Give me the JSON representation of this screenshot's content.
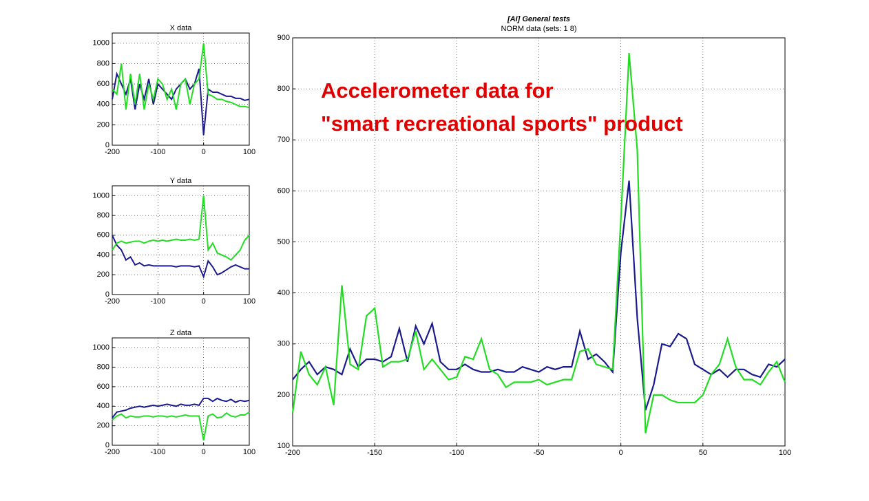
{
  "chart_data": [
    {
      "type": "line",
      "title": "X data",
      "x": [
        -200,
        -190,
        -180,
        -170,
        -160,
        -150,
        -140,
        -130,
        -120,
        -110,
        -100,
        -90,
        -80,
        -70,
        -60,
        -50,
        -40,
        -30,
        -20,
        -10,
        0,
        10,
        20,
        30,
        40,
        50,
        60,
        70,
        80,
        90,
        100
      ],
      "xlim": [
        -200,
        100
      ],
      "xticks": [
        -200,
        -100,
        0,
        100
      ],
      "ylim": [
        0,
        1100
      ],
      "yticks": [
        0,
        200,
        400,
        600,
        800,
        1000
      ],
      "grid": true,
      "series": [
        {
          "color": "#1a1a8c",
          "values": [
            450,
            700,
            600,
            500,
            650,
            350,
            600,
            450,
            650,
            400,
            600,
            550,
            500,
            450,
            550,
            600,
            650,
            550,
            600,
            750,
            100,
            550,
            520,
            520,
            500,
            480,
            480,
            460,
            460,
            440,
            450
          ]
        },
        {
          "color": "#22dd22",
          "values": [
            550,
            500,
            800,
            350,
            700,
            400,
            700,
            350,
            600,
            450,
            650,
            600,
            450,
            550,
            350,
            600,
            650,
            400,
            600,
            650,
            1000,
            500,
            480,
            450,
            450,
            430,
            420,
            400,
            380,
            380,
            370
          ]
        }
      ]
    },
    {
      "type": "line",
      "title": "Y data",
      "x": [
        -200,
        -190,
        -180,
        -170,
        -160,
        -150,
        -140,
        -130,
        -120,
        -110,
        -100,
        -90,
        -80,
        -70,
        -60,
        -50,
        -40,
        -30,
        -20,
        -10,
        0,
        10,
        20,
        30,
        40,
        50,
        60,
        70,
        80,
        90,
        100
      ],
      "xlim": [
        -200,
        100
      ],
      "xticks": [
        -200,
        -100,
        0,
        100
      ],
      "ylim": [
        0,
        1100
      ],
      "yticks": [
        0,
        200,
        400,
        600,
        800,
        1000
      ],
      "grid": true,
      "series": [
        {
          "color": "#1a1a8c",
          "values": [
            600,
            500,
            450,
            350,
            380,
            300,
            320,
            290,
            300,
            290,
            290,
            290,
            290,
            290,
            280,
            290,
            290,
            290,
            280,
            290,
            180,
            340,
            280,
            200,
            220,
            250,
            280,
            300,
            280,
            260,
            260
          ]
        },
        {
          "color": "#22dd22",
          "values": [
            450,
            520,
            540,
            520,
            530,
            540,
            540,
            520,
            540,
            550,
            540,
            550,
            540,
            550,
            560,
            550,
            550,
            560,
            550,
            560,
            1000,
            450,
            520,
            420,
            400,
            380,
            350,
            400,
            450,
            550,
            600
          ]
        }
      ]
    },
    {
      "type": "line",
      "title": "Z data",
      "x": [
        -200,
        -190,
        -180,
        -170,
        -160,
        -150,
        -140,
        -130,
        -120,
        -110,
        -100,
        -90,
        -80,
        -70,
        -60,
        -50,
        -40,
        -30,
        -20,
        -10,
        0,
        10,
        20,
        30,
        40,
        50,
        60,
        70,
        80,
        90,
        100
      ],
      "xlim": [
        -200,
        100
      ],
      "xticks": [
        -200,
        -100,
        0,
        100
      ],
      "ylim": [
        0,
        1100
      ],
      "yticks": [
        0,
        200,
        400,
        600,
        800,
        1000
      ],
      "grid": true,
      "series": [
        {
          "color": "#1a1a8c",
          "values": [
            280,
            340,
            350,
            360,
            380,
            390,
            400,
            390,
            400,
            410,
            400,
            410,
            420,
            410,
            400,
            420,
            410,
            410,
            420,
            410,
            480,
            480,
            450,
            480,
            460,
            450,
            470,
            440,
            460,
            450,
            460
          ]
        },
        {
          "color": "#22dd22",
          "values": [
            260,
            300,
            320,
            280,
            300,
            290,
            290,
            300,
            300,
            290,
            300,
            300,
            290,
            300,
            290,
            300,
            310,
            300,
            300,
            300,
            50,
            300,
            320,
            280,
            290,
            330,
            300,
            290,
            310,
            310,
            340
          ]
        }
      ]
    },
    {
      "type": "line",
      "title": "[AI] General tests",
      "subtitle": "NORM data (sets: 1  8)",
      "annotation": [
        "Accelerometer data for",
        "\"smart recreational sports\" product"
      ],
      "x": [
        -200,
        -195,
        -190,
        -185,
        -180,
        -175,
        -170,
        -165,
        -160,
        -155,
        -150,
        -145,
        -140,
        -135,
        -130,
        -125,
        -120,
        -115,
        -110,
        -105,
        -100,
        -95,
        -90,
        -85,
        -80,
        -75,
        -70,
        -65,
        -60,
        -55,
        -50,
        -45,
        -40,
        -35,
        -30,
        -25,
        -20,
        -15,
        -10,
        -5,
        0,
        5,
        10,
        15,
        20,
        25,
        30,
        35,
        40,
        45,
        50,
        55,
        60,
        65,
        70,
        75,
        80,
        85,
        90,
        95,
        100
      ],
      "xlim": [
        -200,
        100
      ],
      "xticks": [
        -200,
        -150,
        -100,
        -50,
        0,
        50,
        100
      ],
      "ylim": [
        100,
        900
      ],
      "yticks": [
        100,
        200,
        300,
        400,
        500,
        600,
        700,
        800,
        900
      ],
      "grid": true,
      "series": [
        {
          "color": "#1a1a8c",
          "values": [
            230,
            250,
            265,
            240,
            255,
            250,
            240,
            290,
            255,
            270,
            270,
            265,
            275,
            330,
            265,
            335,
            300,
            340,
            265,
            250,
            250,
            260,
            250,
            245,
            245,
            250,
            245,
            245,
            255,
            250,
            245,
            255,
            250,
            255,
            255,
            325,
            270,
            280,
            265,
            245,
            480,
            620,
            350,
            170,
            220,
            300,
            295,
            320,
            310,
            260,
            250,
            240,
            250,
            235,
            250,
            250,
            240,
            235,
            260,
            255,
            270
          ]
        },
        {
          "color": "#22dd22",
          "values": [
            165,
            285,
            240,
            220,
            255,
            180,
            415,
            260,
            250,
            355,
            370,
            255,
            265,
            265,
            270,
            325,
            250,
            270,
            250,
            230,
            235,
            275,
            270,
            310,
            250,
            240,
            215,
            225,
            225,
            225,
            230,
            220,
            225,
            230,
            230,
            285,
            290,
            260,
            255,
            250,
            545,
            870,
            680,
            125,
            200,
            200,
            190,
            185,
            185,
            185,
            200,
            240,
            260,
            310,
            255,
            230,
            230,
            220,
            245,
            265,
            225
          ]
        }
      ]
    }
  ]
}
